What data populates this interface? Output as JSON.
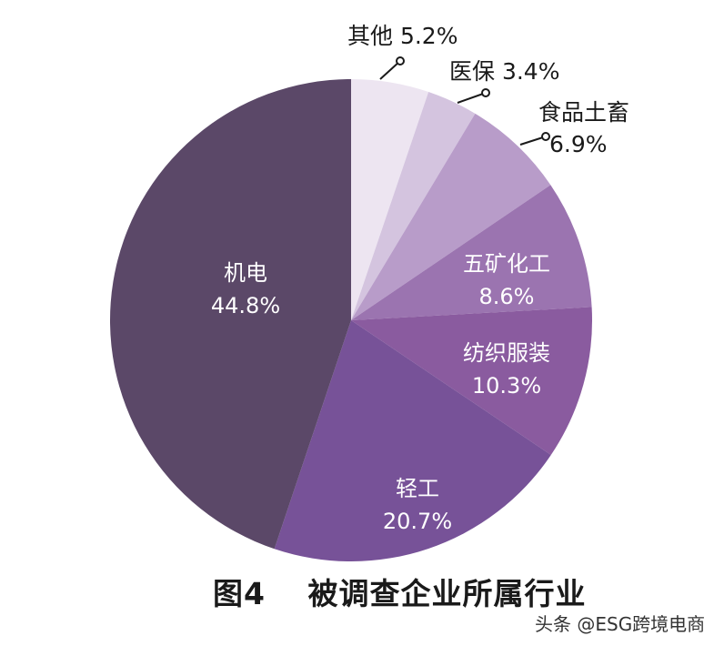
{
  "chart_data": {
    "type": "pie",
    "title": "图4　被调查企业所属行业",
    "start_angle_deg": 0,
    "direction": "clockwise",
    "categories": [
      "其他",
      "医保",
      "食品土畜",
      "五矿化工",
      "纺织服装",
      "轻工",
      "机电"
    ],
    "values": [
      5.2,
      3.4,
      6.9,
      8.6,
      10.3,
      20.7,
      44.8
    ],
    "value_labels": [
      "5.2%",
      "3.4%",
      "6.9%",
      "8.6%",
      "10.3%",
      "20.7%",
      "44.8%"
    ],
    "colors": [
      "#ede5f1",
      "#d4c4df",
      "#b89cc9",
      "#9b74b0",
      "#8a5b9f",
      "#775298",
      "#5b4868"
    ],
    "legend": "none (labels placed on/near slices)"
  },
  "caption": {
    "figure_no": "图4",
    "text": "被调查企业所属行业"
  },
  "watermark": "头条 @ESG跨境电商"
}
